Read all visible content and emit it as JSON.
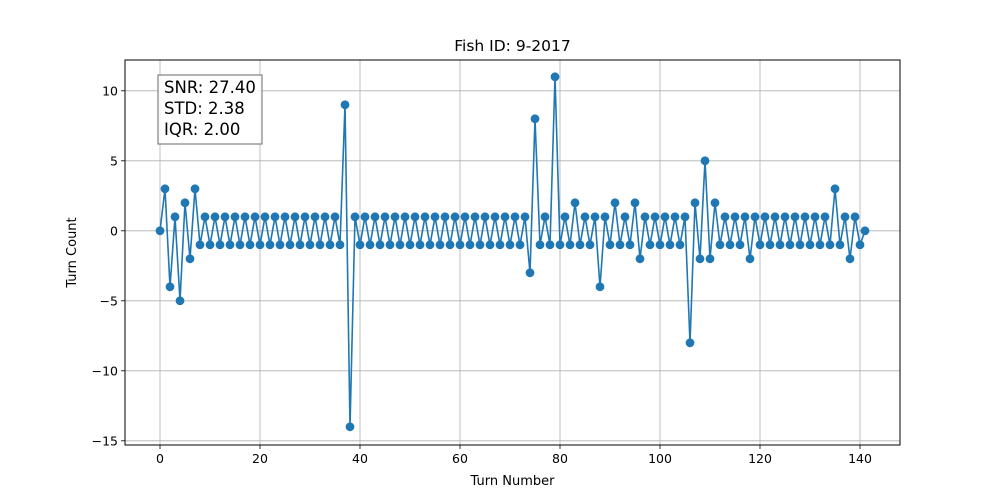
{
  "chart_data": {
    "type": "line",
    "title": "Fish ID: 9-2017",
    "xlabel": "Turn Number",
    "ylabel": "Turn Count",
    "xlim": [
      -7,
      148
    ],
    "ylim": [
      -15.3,
      12.2
    ],
    "xticks": [
      0,
      20,
      40,
      60,
      80,
      100,
      120,
      140
    ],
    "yticks": [
      -15,
      -10,
      -5,
      0,
      5,
      10
    ],
    "grid": true,
    "marker": "circle",
    "color": "#1f77b4",
    "stats_box": {
      "placement": "top-left",
      "lines": [
        "SNR: 27.40",
        "STD: 2.38",
        "IQR: 2.00"
      ]
    },
    "series": [
      {
        "values": [
          0,
          3,
          -4,
          1,
          -5,
          2,
          -2,
          3,
          -1,
          1,
          -1,
          1,
          -1,
          1,
          -1,
          1,
          -1,
          1,
          -1,
          1,
          -1,
          1,
          -1,
          1,
          -1,
          1,
          -1,
          1,
          -1,
          1,
          -1,
          1,
          -1,
          1,
          -1,
          1,
          -1,
          9,
          -14,
          1,
          -1,
          1,
          -1,
          1,
          -1,
          1,
          -1,
          1,
          -1,
          1,
          -1,
          1,
          -1,
          1,
          -1,
          1,
          -1,
          1,
          -1,
          1,
          -1,
          1,
          -1,
          1,
          -1,
          1,
          -1,
          1,
          -1,
          1,
          -1,
          1,
          -1,
          1,
          -3,
          8,
          -1,
          1,
          -1,
          11,
          -1,
          1,
          -1,
          2,
          -1,
          1,
          -1,
          1,
          -4,
          1,
          -1,
          2,
          -1,
          1,
          -1,
          2,
          -2,
          1,
          -1,
          1,
          -1,
          1,
          -1,
          1,
          -1,
          1,
          -8,
          2,
          -2,
          5,
          -2,
          2,
          -1,
          1,
          -1,
          1,
          -1,
          1,
          -2,
          1,
          -1,
          1,
          -1,
          1,
          -1,
          1,
          -1,
          1,
          -1,
          1,
          -1,
          1,
          -1,
          1,
          -1,
          3,
          -1,
          1,
          -2,
          1,
          -1,
          0
        ]
      }
    ]
  }
}
